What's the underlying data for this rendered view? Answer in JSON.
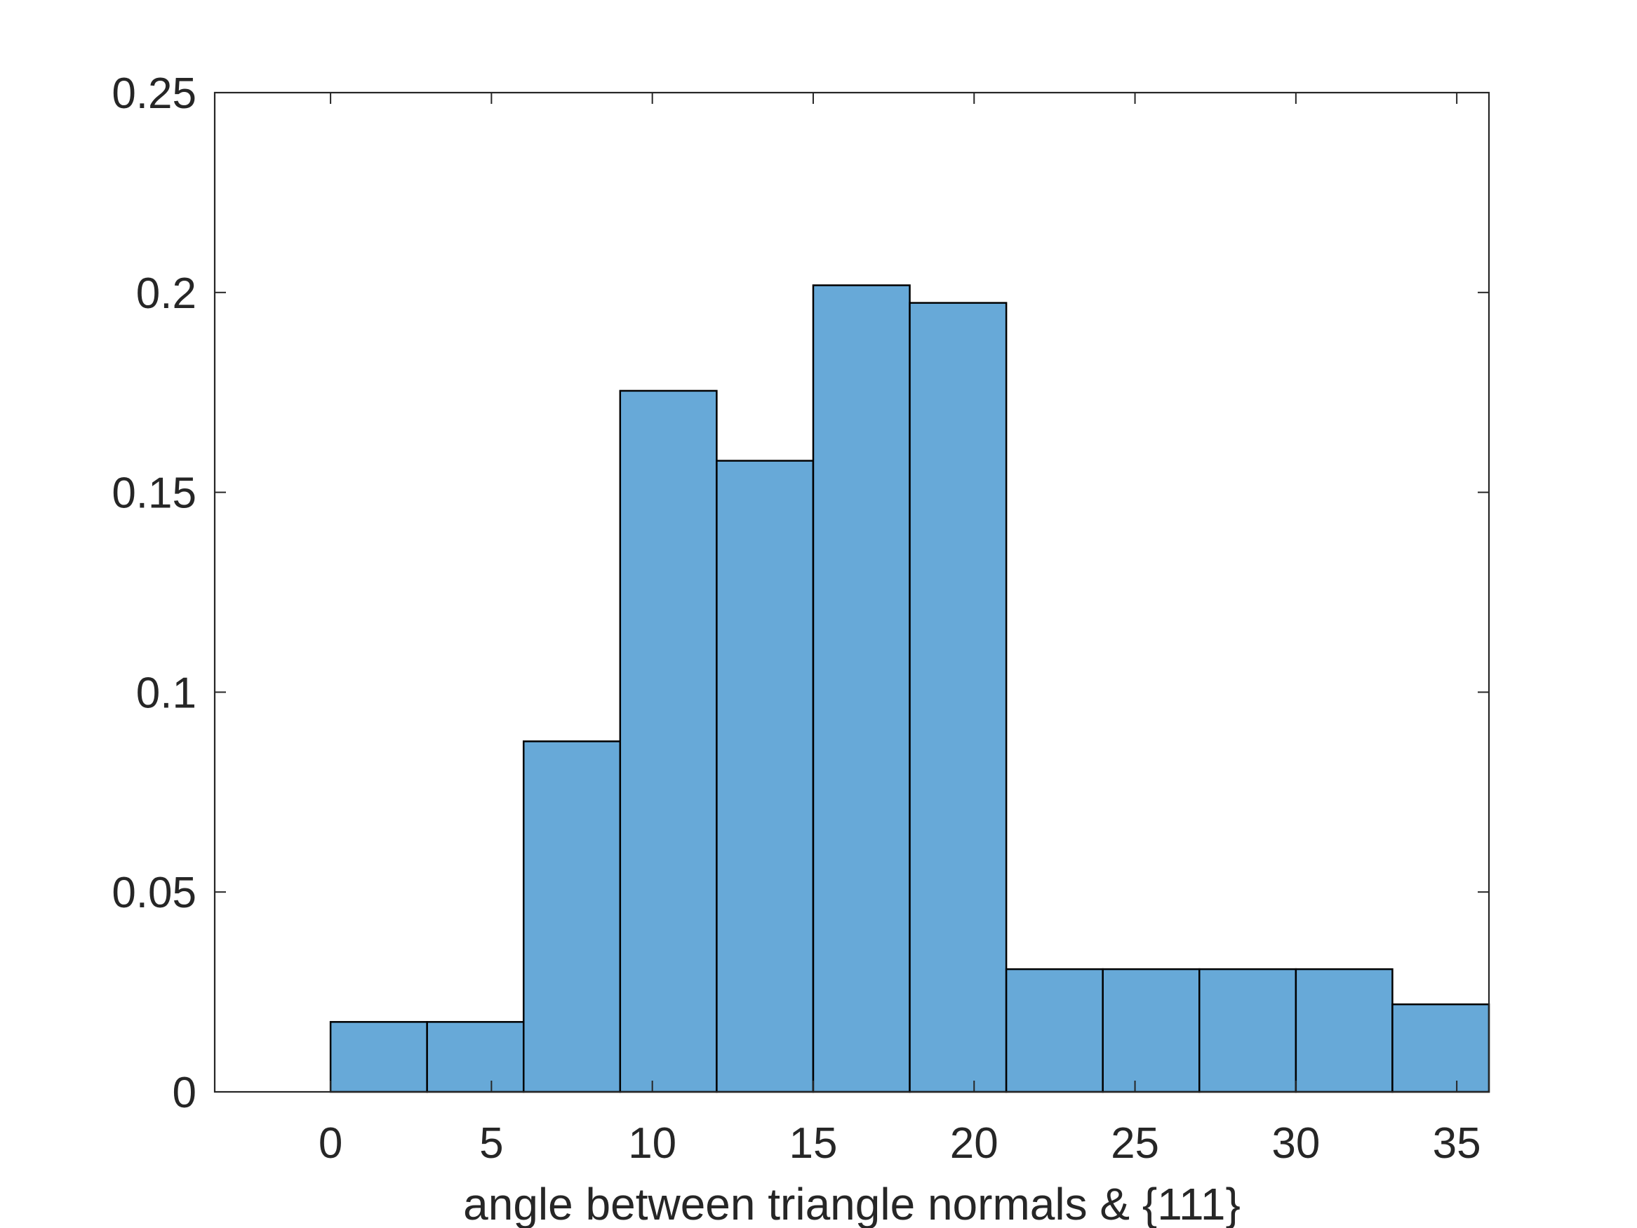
{
  "chart_data": {
    "type": "bar",
    "subtype": "histogram",
    "title": "",
    "xlabel": "angle between triangle normals & {111}",
    "ylabel": "",
    "xlim": [
      -3.6,
      36.0
    ],
    "ylim": [
      0,
      0.25
    ],
    "bin_edges": [
      0,
      3,
      6,
      9,
      12,
      15,
      18,
      21,
      24,
      27,
      30,
      33,
      36
    ],
    "values": [
      0.0175,
      0.0175,
      0.0877,
      0.1754,
      0.1579,
      0.2018,
      0.1974,
      0.0307,
      0.0307,
      0.0307,
      0.0307,
      0.0219
    ],
    "xticks": [
      0,
      5,
      10,
      15,
      20,
      25,
      30,
      35
    ],
    "xtick_labels": [
      "0",
      "5",
      "10",
      "15",
      "20",
      "25",
      "30",
      "35"
    ],
    "yticks": [
      0,
      0.05,
      0.1,
      0.15,
      0.2,
      0.25
    ],
    "ytick_labels": [
      "0",
      "0.05",
      "0.1",
      "0.15",
      "0.2",
      "0.25"
    ],
    "grid": false,
    "legend": "none",
    "bar_color": "#67A9D8",
    "edge_color": "#000000",
    "axis_color": "#262626"
  }
}
